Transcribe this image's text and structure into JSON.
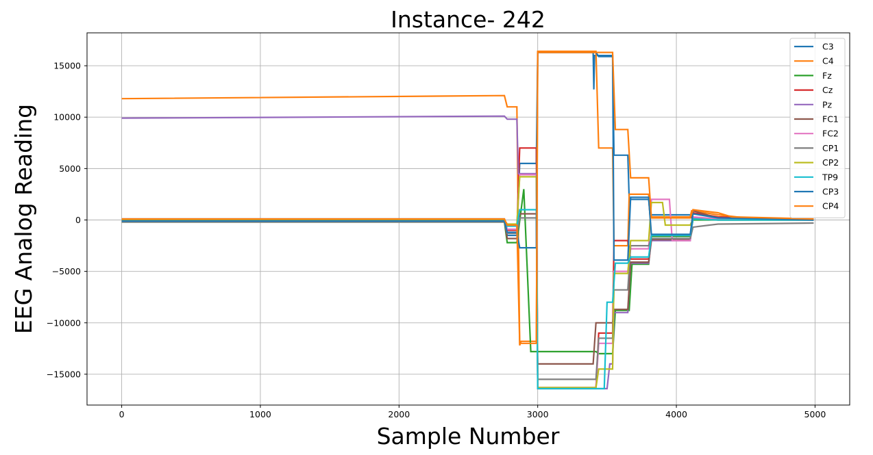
{
  "chart_data": {
    "type": "line",
    "title": "Instance- 242",
    "xlabel": "Sample Number",
    "ylabel": "EEG Analog Reading",
    "xlim": [
      -250,
      5250
    ],
    "ylim": [
      -18000,
      18200
    ],
    "xticks": [
      0,
      1000,
      2000,
      3000,
      4000,
      5000
    ],
    "xtick_labels": [
      "0",
      "1000",
      "2000",
      "3000",
      "4000",
      "5000"
    ],
    "yticks": [
      -15000,
      -10000,
      -5000,
      0,
      5000,
      10000,
      15000
    ],
    "ytick_labels": [
      "−15000",
      "−10000",
      "−5000",
      "0",
      "5000",
      "10000",
      "15000"
    ],
    "grid": true,
    "legend_position": "top-right",
    "series": [
      {
        "name": "C3",
        "color": "#1f77b4",
        "x": [
          0,
          2760,
          2780,
          2850,
          2870,
          2990,
          3000,
          3400,
          3405,
          3410,
          3540,
          3550,
          3650,
          3660,
          3800,
          3810,
          4100,
          4110,
          4300,
          4500,
          4990
        ],
        "y": [
          0,
          0,
          -1500,
          -1500,
          5500,
          5500,
          16300,
          16300,
          12700,
          16000,
          16000,
          6300,
          6300,
          2000,
          2000,
          500,
          500,
          200,
          0,
          0,
          0
        ]
      },
      {
        "name": "C4",
        "color": "#ff7f0e",
        "x": [
          0,
          2760,
          2780,
          2850,
          2870,
          2880,
          2990,
          3000,
          3420,
          3440,
          3540,
          3550,
          3650,
          3660,
          3800,
          3810,
          4100,
          4110,
          4300,
          4500,
          4990
        ],
        "y": [
          11800,
          12100,
          11000,
          11000,
          -12200,
          -11800,
          -11800,
          16400,
          16400,
          7000,
          7000,
          -2500,
          -2500,
          2500,
          2500,
          300,
          300,
          900,
          500,
          200,
          100
        ]
      },
      {
        "name": "Fz",
        "color": "#2ca02c",
        "x": [
          0,
          2760,
          2780,
          2850,
          2900,
          2950,
          2960,
          3420,
          3440,
          3540,
          3560,
          3660,
          3680,
          3800,
          3820,
          4100,
          4120,
          4300,
          4990
        ],
        "y": [
          -200,
          -200,
          -2200,
          -2200,
          3000,
          -12800,
          -12800,
          -12800,
          -13000,
          -13000,
          -8800,
          -8800,
          -4300,
          -4300,
          -1600,
          -1600,
          0,
          0,
          0
        ]
      },
      {
        "name": "Cz",
        "color": "#d62728",
        "x": [
          0,
          2760,
          2780,
          2850,
          2870,
          2990,
          3000,
          3420,
          3440,
          3540,
          3550,
          3650,
          3670,
          3800,
          3820,
          4100,
          4120,
          4300,
          4990
        ],
        "y": [
          0,
          0,
          -1000,
          -1000,
          7000,
          7000,
          -16300,
          -16300,
          -11000,
          -11000,
          -2000,
          -2000,
          -3800,
          -3800,
          -1500,
          -1500,
          700,
          300,
          0
        ]
      },
      {
        "name": "Pz",
        "color": "#9467bd",
        "x": [
          0,
          2760,
          2780,
          2850,
          2860,
          2990,
          3000,
          3500,
          3520,
          3540,
          3550,
          3650,
          3670,
          3800,
          3820,
          4100,
          4120,
          4300,
          4990
        ],
        "y": [
          9900,
          10100,
          9800,
          9800,
          4500,
          4500,
          -16400,
          -16400,
          -14000,
          -14000,
          -9000,
          -9000,
          -4200,
          -4200,
          -2000,
          -2000,
          200,
          100,
          0
        ]
      },
      {
        "name": "FC1",
        "color": "#8c564b",
        "x": [
          0,
          2760,
          2780,
          2850,
          2870,
          2990,
          3000,
          3400,
          3420,
          3540,
          3550,
          3650,
          3670,
          3800,
          3820,
          4100,
          4120,
          4300,
          4990
        ],
        "y": [
          -100,
          -100,
          -1800,
          -1800,
          600,
          600,
          -14000,
          -14000,
          -10000,
          -10000,
          -8700,
          -8700,
          -4100,
          -4100,
          -1900,
          -1900,
          900,
          200,
          0
        ]
      },
      {
        "name": "FC2",
        "color": "#e377c2",
        "x": [
          0,
          2760,
          2780,
          2850,
          2870,
          2990,
          3000,
          3420,
          3440,
          3540,
          3550,
          3650,
          3670,
          3800,
          3820,
          3950,
          3970,
          4100,
          4120,
          4300,
          4990
        ],
        "y": [
          100,
          100,
          -900,
          -900,
          4400,
          4400,
          -16300,
          -16300,
          -12000,
          -12000,
          -5000,
          -5000,
          -2800,
          -2800,
          2000,
          2000,
          -2000,
          -2000,
          300,
          100,
          0
        ]
      },
      {
        "name": "CP1",
        "color": "#7f7f7f",
        "x": [
          0,
          2760,
          2780,
          2850,
          2870,
          2990,
          3000,
          3420,
          3440,
          3540,
          3550,
          3650,
          3670,
          3800,
          3820,
          4100,
          4120,
          4300,
          4990
        ],
        "y": [
          -200,
          -200,
          -1300,
          -1300,
          200,
          200,
          -15500,
          -15500,
          -11500,
          -11500,
          -6800,
          -6800,
          -2500,
          -2500,
          -1800,
          -1800,
          -700,
          -400,
          -300
        ]
      },
      {
        "name": "CP2",
        "color": "#bcbd22",
        "x": [
          0,
          2760,
          2780,
          2850,
          2870,
          2990,
          3000,
          3420,
          3440,
          3540,
          3550,
          3650,
          3670,
          3800,
          3820,
          3900,
          3920,
          4100,
          4120,
          4300,
          4990
        ],
        "y": [
          0,
          0,
          -400,
          -400,
          4200,
          4200,
          -16300,
          -16300,
          -14500,
          -14500,
          -5200,
          -5200,
          -2000,
          -2000,
          1700,
          1700,
          -500,
          -500,
          100,
          0,
          0
        ]
      },
      {
        "name": "TP9",
        "color": "#17becf",
        "x": [
          0,
          2760,
          2780,
          2850,
          2870,
          2990,
          3000,
          3480,
          3500,
          3540,
          3560,
          3650,
          3670,
          3800,
          3820,
          4100,
          4120,
          4300,
          4990
        ],
        "y": [
          100,
          100,
          -600,
          -600,
          1000,
          1000,
          -16400,
          -16400,
          -8000,
          -8000,
          -4200,
          -4200,
          -3600,
          -3600,
          -1500,
          -1500,
          100,
          0,
          0
        ]
      },
      {
        "name": "CP3",
        "color": "#1f77b4",
        "x": [
          0,
          2760,
          2780,
          2850,
          2870,
          2990,
          3000,
          3420,
          3440,
          3540,
          3550,
          3650,
          3670,
          3800,
          3820,
          4100,
          4120,
          4300,
          4990
        ],
        "y": [
          -100,
          -100,
          -1200,
          -1200,
          -2700,
          -2700,
          16300,
          16300,
          15900,
          15900,
          -3900,
          -3900,
          2200,
          2200,
          -1400,
          -1400,
          600,
          200,
          0
        ]
      },
      {
        "name": "CP4",
        "color": "#ff7f0e",
        "x": [
          0,
          2760,
          2780,
          2850,
          2870,
          2990,
          3000,
          3540,
          3560,
          3650,
          3670,
          3800,
          3820,
          4100,
          4120,
          4300,
          4400,
          4990
        ],
        "y": [
          100,
          100,
          -500,
          -500,
          -12000,
          -12000,
          16300,
          16300,
          8800,
          8800,
          4100,
          4100,
          200,
          200,
          1000,
          700,
          300,
          100
        ]
      }
    ]
  }
}
